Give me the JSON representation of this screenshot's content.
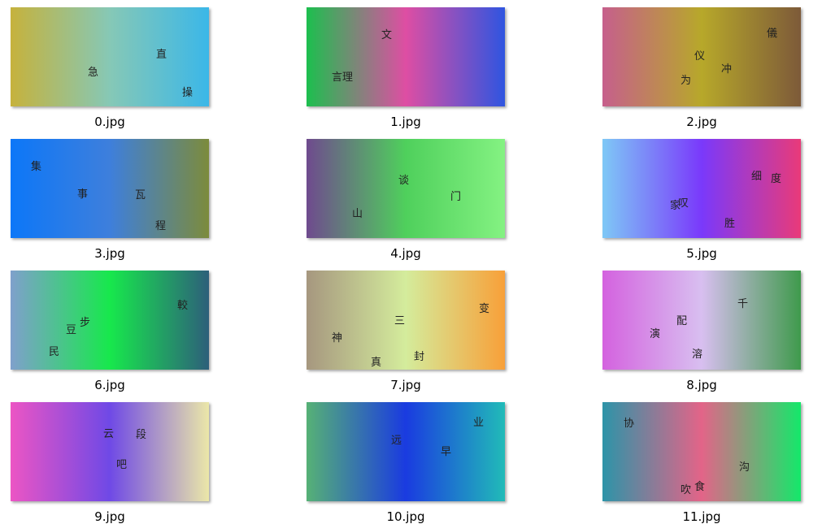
{
  "files": [
    {
      "name": "0.jpg",
      "gradient": [
        "#c6b23c",
        "#86c8b6",
        "#3bb7e8"
      ],
      "chars": [
        "直",
        "急",
        "操"
      ]
    },
    {
      "name": "1.jpg",
      "gradient": [
        "#1cbf4e",
        "#de4ea3",
        "#2f55e0"
      ],
      "chars": [
        "文",
        "言理"
      ]
    },
    {
      "name": "2.jpg",
      "gradient": [
        "#c65f8c",
        "#b7a82a",
        "#7d5a39"
      ],
      "chars": [
        "儀",
        "仪",
        "冲",
        "为"
      ]
    },
    {
      "name": "3.jpg",
      "gradient": [
        "#0c77f8",
        "#3e7fdc",
        "#7c8b3c"
      ],
      "chars": [
        "集",
        "事",
        "瓦",
        "程"
      ]
    },
    {
      "name": "4.jpg",
      "gradient": [
        "#6f4a8e",
        "#4fd05c",
        "#84f282"
      ],
      "chars": [
        "谈",
        "门",
        "山"
      ]
    },
    {
      "name": "5.jpg",
      "gradient": [
        "#7ec8f6",
        "#7a39fb",
        "#e93a79"
      ],
      "chars": [
        "细",
        "度",
        "家",
        "叹",
        "胜"
      ]
    },
    {
      "name": "6.jpg",
      "gradient": [
        "#7fa0cc",
        "#17e84c",
        "#2d5f7a"
      ],
      "chars": [
        "較",
        "步",
        "豆",
        "民"
      ]
    },
    {
      "name": "7.jpg",
      "gradient": [
        "#a6977f",
        "#d4ec9c",
        "#f8a039"
      ],
      "chars": [
        "变",
        "三",
        "神",
        "真",
        "封"
      ]
    },
    {
      "name": "8.jpg",
      "gradient": [
        "#d462df",
        "#d8bff0",
        "#3f9a4c"
      ],
      "chars": [
        "千",
        "配",
        "演",
        "溶"
      ]
    },
    {
      "name": "9.jpg",
      "gradient": [
        "#ec55c4",
        "#6f49e6",
        "#ebe7a8"
      ],
      "chars": [
        "云",
        "段",
        "吧"
      ]
    },
    {
      "name": "10.jpg",
      "gradient": [
        "#56b176",
        "#1a3be0",
        "#21bbb8"
      ],
      "chars": [
        "业",
        "远",
        "早"
      ]
    },
    {
      "name": "11.jpg",
      "gradient": [
        "#2d94a8",
        "#e36488",
        "#14e86a"
      ],
      "chars": [
        "协",
        "沟",
        "吹",
        "食"
      ]
    }
  ]
}
